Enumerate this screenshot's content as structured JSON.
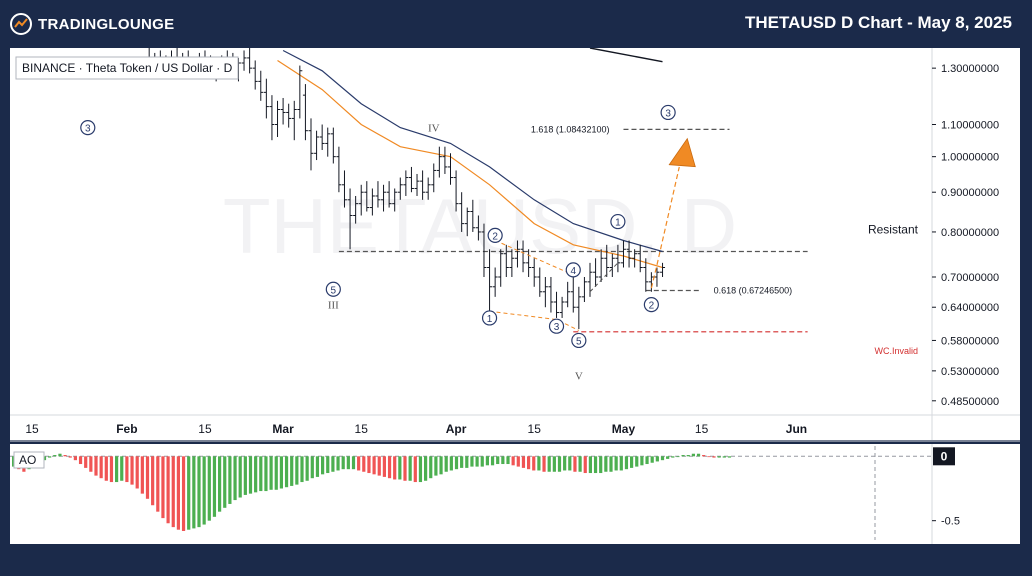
{
  "header": {
    "logo_text": "TRADINGLOUNGE",
    "title": "THETAUSD D Chart - May 8, 2025"
  },
  "chart_data": {
    "type": "candlestick",
    "symbol_label": "BINANCE · Theta Token / US Dollar · D",
    "watermark": "THETAUSD, D",
    "price_scale": "log",
    "ylim": [
      0.465,
      1.38
    ],
    "y_ticks": [
      {
        "value": 1.3,
        "label": "1.30000000"
      },
      {
        "value": 1.1,
        "label": "1.10000000"
      },
      {
        "value": 1.0,
        "label": "1.00000000"
      },
      {
        "value": 0.9,
        "label": "0.90000000"
      },
      {
        "value": 0.8,
        "label": "0.80000000"
      },
      {
        "value": 0.7,
        "label": "0.70000000"
      },
      {
        "value": 0.64,
        "label": "0.64000000"
      },
      {
        "value": 0.58,
        "label": "0.58000000"
      },
      {
        "value": 0.53,
        "label": "0.53000000"
      },
      {
        "value": 0.485,
        "label": "0.48500000"
      }
    ],
    "x_labels": [
      {
        "date": "2025-01-15",
        "label": "15"
      },
      {
        "date": "2025-02-01",
        "label": "Feb"
      },
      {
        "date": "2025-02-15",
        "label": "15"
      },
      {
        "date": "2025-03-01",
        "label": "Mar"
      },
      {
        "date": "2025-03-15",
        "label": "15"
      },
      {
        "date": "2025-04-01",
        "label": "Apr"
      },
      {
        "date": "2025-04-15",
        "label": "15"
      },
      {
        "date": "2025-05-01",
        "label": "May"
      },
      {
        "date": "2025-05-15",
        "label": "15"
      },
      {
        "date": "2025-06-01",
        "label": "Jun"
      }
    ],
    "candles": [
      {
        "date": "2025-02-05",
        "o": 1.32,
        "h": 1.38,
        "l": 1.28,
        "c": 1.3
      },
      {
        "date": "2025-02-06",
        "o": 1.3,
        "h": 1.36,
        "l": 1.27,
        "c": 1.33
      },
      {
        "date": "2025-02-07",
        "o": 1.33,
        "h": 1.37,
        "l": 1.29,
        "c": 1.31
      },
      {
        "date": "2025-02-08",
        "o": 1.31,
        "h": 1.35,
        "l": 1.28,
        "c": 1.32
      },
      {
        "date": "2025-02-09",
        "o": 1.32,
        "h": 1.37,
        "l": 1.3,
        "c": 1.34
      },
      {
        "date": "2025-02-10",
        "o": 1.34,
        "h": 1.38,
        "l": 1.3,
        "c": 1.31
      },
      {
        "date": "2025-02-11",
        "o": 1.31,
        "h": 1.36,
        "l": 1.28,
        "c": 1.33
      },
      {
        "date": "2025-02-12",
        "o": 1.33,
        "h": 1.37,
        "l": 1.29,
        "c": 1.3
      },
      {
        "date": "2025-02-13",
        "o": 1.3,
        "h": 1.34,
        "l": 1.27,
        "c": 1.32
      },
      {
        "date": "2025-02-14",
        "o": 1.32,
        "h": 1.36,
        "l": 1.29,
        "c": 1.33
      },
      {
        "date": "2025-02-15",
        "o": 1.33,
        "h": 1.37,
        "l": 1.29,
        "c": 1.31
      },
      {
        "date": "2025-02-16",
        "o": 1.31,
        "h": 1.35,
        "l": 1.27,
        "c": 1.29
      },
      {
        "date": "2025-02-17",
        "o": 1.29,
        "h": 1.33,
        "l": 1.25,
        "c": 1.31
      },
      {
        "date": "2025-02-18",
        "o": 1.31,
        "h": 1.35,
        "l": 1.28,
        "c": 1.33
      },
      {
        "date": "2025-02-19",
        "o": 1.33,
        "h": 1.37,
        "l": 1.3,
        "c": 1.32
      },
      {
        "date": "2025-02-20",
        "o": 1.32,
        "h": 1.36,
        "l": 1.27,
        "c": 1.28
      },
      {
        "date": "2025-02-21",
        "o": 1.28,
        "h": 1.34,
        "l": 1.25,
        "c": 1.32
      },
      {
        "date": "2025-02-22",
        "o": 1.32,
        "h": 1.37,
        "l": 1.29,
        "c": 1.34
      },
      {
        "date": "2025-02-23",
        "o": 1.34,
        "h": 1.38,
        "l": 1.28,
        "c": 1.3
      },
      {
        "date": "2025-02-24",
        "o": 1.3,
        "h": 1.33,
        "l": 1.22,
        "c": 1.25
      },
      {
        "date": "2025-02-25",
        "o": 1.25,
        "h": 1.29,
        "l": 1.18,
        "c": 1.21
      },
      {
        "date": "2025-02-26",
        "o": 1.21,
        "h": 1.26,
        "l": 1.12,
        "c": 1.16
      },
      {
        "date": "2025-02-27",
        "o": 1.16,
        "h": 1.2,
        "l": 1.05,
        "c": 1.1
      },
      {
        "date": "2025-02-28",
        "o": 1.1,
        "h": 1.18,
        "l": 1.06,
        "c": 1.15
      },
      {
        "date": "2025-03-01",
        "o": 1.15,
        "h": 1.19,
        "l": 1.1,
        "c": 1.14
      },
      {
        "date": "2025-03-02",
        "o": 1.14,
        "h": 1.17,
        "l": 1.09,
        "c": 1.12
      },
      {
        "date": "2025-03-03",
        "o": 1.12,
        "h": 1.18,
        "l": 1.05,
        "c": 1.15
      },
      {
        "date": "2025-03-04",
        "o": 1.15,
        "h": 1.31,
        "l": 1.12,
        "c": 1.29
      },
      {
        "date": "2025-03-05",
        "o": 1.2,
        "h": 1.24,
        "l": 1.05,
        "c": 1.08
      },
      {
        "date": "2025-03-06",
        "o": 1.08,
        "h": 1.12,
        "l": 0.96,
        "c": 1.01
      },
      {
        "date": "2025-03-07",
        "o": 1.01,
        "h": 1.08,
        "l": 0.99,
        "c": 1.06
      },
      {
        "date": "2025-03-08",
        "o": 1.06,
        "h": 1.1,
        "l": 1.02,
        "c": 1.04
      },
      {
        "date": "2025-03-09",
        "o": 1.04,
        "h": 1.09,
        "l": 1.0,
        "c": 1.07
      },
      {
        "date": "2025-03-10",
        "o": 1.07,
        "h": 1.09,
        "l": 0.98,
        "c": 1.0
      },
      {
        "date": "2025-03-11",
        "o": 1.0,
        "h": 1.03,
        "l": 0.9,
        "c": 0.92
      },
      {
        "date": "2025-03-12",
        "o": 0.92,
        "h": 0.96,
        "l": 0.86,
        "c": 0.88
      },
      {
        "date": "2025-03-13",
        "o": 0.88,
        "h": 0.91,
        "l": 0.76,
        "c": 0.84
      },
      {
        "date": "2025-03-14",
        "o": 0.84,
        "h": 0.89,
        "l": 0.82,
        "c": 0.87
      },
      {
        "date": "2025-03-15",
        "o": 0.87,
        "h": 0.92,
        "l": 0.84,
        "c": 0.9
      },
      {
        "date": "2025-03-16",
        "o": 0.9,
        "h": 0.93,
        "l": 0.85,
        "c": 0.86
      },
      {
        "date": "2025-03-17",
        "o": 0.86,
        "h": 0.91,
        "l": 0.84,
        "c": 0.89
      },
      {
        "date": "2025-03-18",
        "o": 0.89,
        "h": 0.93,
        "l": 0.86,
        "c": 0.88
      },
      {
        "date": "2025-03-19",
        "o": 0.88,
        "h": 0.92,
        "l": 0.85,
        "c": 0.9
      },
      {
        "date": "2025-03-20",
        "o": 0.9,
        "h": 0.93,
        "l": 0.86,
        "c": 0.87
      },
      {
        "date": "2025-03-21",
        "o": 0.87,
        "h": 0.91,
        "l": 0.85,
        "c": 0.9
      },
      {
        "date": "2025-03-22",
        "o": 0.9,
        "h": 0.94,
        "l": 0.88,
        "c": 0.92
      },
      {
        "date": "2025-03-23",
        "o": 0.92,
        "h": 0.96,
        "l": 0.89,
        "c": 0.94
      },
      {
        "date": "2025-03-24",
        "o": 0.94,
        "h": 0.97,
        "l": 0.9,
        "c": 0.91
      },
      {
        "date": "2025-03-25",
        "o": 0.91,
        "h": 0.95,
        "l": 0.89,
        "c": 0.93
      },
      {
        "date": "2025-03-26",
        "o": 0.93,
        "h": 0.96,
        "l": 0.88,
        "c": 0.9
      },
      {
        "date": "2025-03-27",
        "o": 0.9,
        "h": 0.94,
        "l": 0.88,
        "c": 0.92
      },
      {
        "date": "2025-03-28",
        "o": 0.92,
        "h": 0.98,
        "l": 0.9,
        "c": 0.96
      },
      {
        "date": "2025-03-29",
        "o": 0.96,
        "h": 1.03,
        "l": 0.94,
        "c": 1.0
      },
      {
        "date": "2025-03-30",
        "o": 1.0,
        "h": 1.03,
        "l": 0.95,
        "c": 0.97
      },
      {
        "date": "2025-03-31",
        "o": 0.97,
        "h": 1.01,
        "l": 0.92,
        "c": 0.94
      },
      {
        "date": "2025-04-01",
        "o": 0.94,
        "h": 0.96,
        "l": 0.85,
        "c": 0.87
      },
      {
        "date": "2025-04-02",
        "o": 0.87,
        "h": 0.9,
        "l": 0.8,
        "c": 0.82
      },
      {
        "date": "2025-04-03",
        "o": 0.82,
        "h": 0.86,
        "l": 0.79,
        "c": 0.85
      },
      {
        "date": "2025-04-04",
        "o": 0.85,
        "h": 0.88,
        "l": 0.8,
        "c": 0.81
      },
      {
        "date": "2025-04-05",
        "o": 0.81,
        "h": 0.84,
        "l": 0.78,
        "c": 0.8
      },
      {
        "date": "2025-04-06",
        "o": 0.8,
        "h": 0.82,
        "l": 0.7,
        "c": 0.72
      },
      {
        "date": "2025-04-07",
        "o": 0.72,
        "h": 0.76,
        "l": 0.63,
        "c": 0.68
      },
      {
        "date": "2025-04-08",
        "o": 0.68,
        "h": 0.72,
        "l": 0.66,
        "c": 0.7
      },
      {
        "date": "2025-04-09",
        "o": 0.7,
        "h": 0.76,
        "l": 0.68,
        "c": 0.75
      },
      {
        "date": "2025-04-10",
        "o": 0.75,
        "h": 0.77,
        "l": 0.7,
        "c": 0.72
      },
      {
        "date": "2025-04-11",
        "o": 0.72,
        "h": 0.76,
        "l": 0.7,
        "c": 0.74
      },
      {
        "date": "2025-04-12",
        "o": 0.74,
        "h": 0.78,
        "l": 0.72,
        "c": 0.76
      },
      {
        "date": "2025-04-13",
        "o": 0.76,
        "h": 0.78,
        "l": 0.71,
        "c": 0.73
      },
      {
        "date": "2025-04-14",
        "o": 0.73,
        "h": 0.76,
        "l": 0.7,
        "c": 0.72
      },
      {
        "date": "2025-04-15",
        "o": 0.72,
        "h": 0.74,
        "l": 0.68,
        "c": 0.7
      },
      {
        "date": "2025-04-16",
        "o": 0.7,
        "h": 0.72,
        "l": 0.66,
        "c": 0.67
      },
      {
        "date": "2025-04-17",
        "o": 0.67,
        "h": 0.7,
        "l": 0.64,
        "c": 0.68
      },
      {
        "date": "2025-04-18",
        "o": 0.68,
        "h": 0.7,
        "l": 0.63,
        "c": 0.65
      },
      {
        "date": "2025-04-19",
        "o": 0.65,
        "h": 0.67,
        "l": 0.62,
        "c": 0.63
      },
      {
        "date": "2025-04-20",
        "o": 0.63,
        "h": 0.66,
        "l": 0.62,
        "c": 0.65
      },
      {
        "date": "2025-04-21",
        "o": 0.65,
        "h": 0.69,
        "l": 0.64,
        "c": 0.67
      },
      {
        "date": "2025-04-22",
        "o": 0.67,
        "h": 0.7,
        "l": 0.63,
        "c": 0.64
      },
      {
        "date": "2025-04-23",
        "o": 0.64,
        "h": 0.68,
        "l": 0.6,
        "c": 0.66
      },
      {
        "date": "2025-04-24",
        "o": 0.66,
        "h": 0.7,
        "l": 0.65,
        "c": 0.69
      },
      {
        "date": "2025-04-25",
        "o": 0.69,
        "h": 0.73,
        "l": 0.66,
        "c": 0.71
      },
      {
        "date": "2025-04-26",
        "o": 0.71,
        "h": 0.74,
        "l": 0.68,
        "c": 0.7
      },
      {
        "date": "2025-04-27",
        "o": 0.7,
        "h": 0.76,
        "l": 0.69,
        "c": 0.74
      },
      {
        "date": "2025-04-28",
        "o": 0.74,
        "h": 0.77,
        "l": 0.7,
        "c": 0.72
      },
      {
        "date": "2025-04-29",
        "o": 0.72,
        "h": 0.75,
        "l": 0.7,
        "c": 0.74
      },
      {
        "date": "2025-04-30",
        "o": 0.74,
        "h": 0.77,
        "l": 0.71,
        "c": 0.73
      },
      {
        "date": "2025-05-01",
        "o": 0.73,
        "h": 0.78,
        "l": 0.72,
        "c": 0.76
      },
      {
        "date": "2025-05-02",
        "o": 0.76,
        "h": 0.78,
        "l": 0.72,
        "c": 0.74
      },
      {
        "date": "2025-05-03",
        "o": 0.74,
        "h": 0.76,
        "l": 0.72,
        "c": 0.75
      },
      {
        "date": "2025-05-04",
        "o": 0.75,
        "h": 0.77,
        "l": 0.71,
        "c": 0.72
      },
      {
        "date": "2025-05-05",
        "o": 0.72,
        "h": 0.74,
        "l": 0.67,
        "c": 0.69
      },
      {
        "date": "2025-05-06",
        "o": 0.69,
        "h": 0.71,
        "l": 0.67,
        "c": 0.7
      },
      {
        "date": "2025-05-07",
        "o": 0.7,
        "h": 0.72,
        "l": 0.68,
        "c": 0.71
      },
      {
        "date": "2025-05-08",
        "o": 0.71,
        "h": 0.73,
        "l": 0.7,
        "c": 0.72
      }
    ],
    "moving_averages": [
      {
        "color": "#f08a24",
        "points": [
          [
            "2025-02-28",
            1.33
          ],
          [
            "2025-03-08",
            1.22
          ],
          [
            "2025-03-15",
            1.1
          ],
          [
            "2025-03-22",
            1.03
          ],
          [
            "2025-03-31",
            1.0
          ],
          [
            "2025-04-07",
            0.92
          ],
          [
            "2025-04-15",
            0.82
          ],
          [
            "2025-04-22",
            0.77
          ],
          [
            "2025-05-01",
            0.745
          ],
          [
            "2025-05-08",
            0.72
          ]
        ]
      },
      {
        "color": "#2a3b6b",
        "points": [
          [
            "2025-03-01",
            1.37
          ],
          [
            "2025-03-08",
            1.29
          ],
          [
            "2025-03-15",
            1.17
          ],
          [
            "2025-03-22",
            1.09
          ],
          [
            "2025-03-31",
            1.04
          ],
          [
            "2025-04-07",
            0.97
          ],
          [
            "2025-04-15",
            0.88
          ],
          [
            "2025-04-22",
            0.82
          ],
          [
            "2025-05-01",
            0.78
          ],
          [
            "2025-05-08",
            0.755
          ]
        ]
      },
      {
        "color": "#131722",
        "points": [
          [
            "2025-04-25",
            1.38
          ],
          [
            "2025-05-08",
            1.325
          ]
        ]
      }
    ],
    "levels": [
      {
        "price": 0.755,
        "from": "2025-03-11",
        "to": "2025-06-03",
        "color": "#555555",
        "label": "Resistant"
      },
      {
        "price": 1.0843,
        "from": "2025-05-01",
        "to": "2025-05-20",
        "color": "#555555",
        "label": "1.618 (1.08432100)"
      },
      {
        "price": 0.6725,
        "from": "2025-05-05",
        "to": "2025-05-15",
        "color": "#555555",
        "label": "0.618 (0.67246500)"
      },
      {
        "price": 0.595,
        "from": "2025-04-22",
        "to": "2025-06-03",
        "color": "#d32f2f",
        "label": "WC.Invalid"
      }
    ],
    "wave_labels": [
      {
        "text": "3",
        "circled": true,
        "date": "2025-01-25",
        "price": 1.09
      },
      {
        "text": "IV",
        "circled": false,
        "date": "2025-03-28",
        "price": 1.09
      },
      {
        "text": "5",
        "circled": true,
        "date": "2025-03-10",
        "price": 0.675
      },
      {
        "text": "III",
        "circled": false,
        "date": "2025-03-10",
        "price": 0.645
      },
      {
        "text": "1",
        "circled": true,
        "date": "2025-04-07",
        "price": 0.62
      },
      {
        "text": "2",
        "circled": true,
        "date": "2025-04-08",
        "price": 0.792
      },
      {
        "text": "3",
        "circled": true,
        "date": "2025-04-19",
        "price": 0.605
      },
      {
        "text": "4",
        "circled": true,
        "date": "2025-04-22",
        "price": 0.715
      },
      {
        "text": "5",
        "circled": true,
        "date": "2025-04-23",
        "price": 0.58
      },
      {
        "text": "V",
        "circled": false,
        "date": "2025-04-23",
        "price": 0.523
      },
      {
        "text": "1",
        "circled": true,
        "date": "2025-04-30",
        "price": 0.825
      },
      {
        "text": "2",
        "circled": true,
        "date": "2025-05-06",
        "price": 0.645
      },
      {
        "text": "3",
        "circled": true,
        "date": "2025-05-09",
        "price": 1.14
      }
    ],
    "ao": {
      "label": "AO",
      "ylim": [
        -0.65,
        0.08
      ],
      "ticks": [
        {
          "value": 0,
          "label": "0"
        },
        {
          "value": -0.5,
          "label": "-0.5"
        }
      ],
      "values": [
        -0.08,
        -0.1,
        -0.12,
        -0.1,
        -0.08,
        -0.06,
        -0.03,
        -0.01,
        0.01,
        0.02,
        0.01,
        -0.01,
        -0.03,
        -0.06,
        -0.09,
        -0.12,
        -0.15,
        -0.17,
        -0.19,
        -0.2,
        -0.2,
        -0.19,
        -0.2,
        -0.22,
        -0.25,
        -0.29,
        -0.33,
        -0.38,
        -0.43,
        -0.48,
        -0.52,
        -0.55,
        -0.57,
        -0.58,
        -0.57,
        -0.56,
        -0.55,
        -0.53,
        -0.5,
        -0.47,
        -0.43,
        -0.4,
        -0.37,
        -0.34,
        -0.32,
        -0.3,
        -0.29,
        -0.28,
        -0.27,
        -0.27,
        -0.26,
        -0.26,
        -0.25,
        -0.24,
        -0.23,
        -0.22,
        -0.2,
        -0.19,
        -0.17,
        -0.16,
        -0.14,
        -0.13,
        -0.12,
        -0.11,
        -0.1,
        -0.1,
        -0.1,
        -0.11,
        -0.12,
        -0.13,
        -0.14,
        -0.15,
        -0.16,
        -0.17,
        -0.18,
        -0.18,
        -0.19,
        -0.19,
        -0.2,
        -0.2,
        -0.19,
        -0.17,
        -0.15,
        -0.14,
        -0.12,
        -0.11,
        -0.1,
        -0.09,
        -0.09,
        -0.08,
        -0.08,
        -0.08,
        -0.07,
        -0.07,
        -0.06,
        -0.06,
        -0.06,
        -0.07,
        -0.08,
        -0.09,
        -0.1,
        -0.11,
        -0.11,
        -0.12,
        -0.12,
        -0.12,
        -0.12,
        -0.11,
        -0.11,
        -0.12,
        -0.12,
        -0.13,
        -0.13,
        -0.13,
        -0.13,
        -0.12,
        -0.12,
        -0.11,
        -0.11,
        -0.1,
        -0.09,
        -0.08,
        -0.07,
        -0.06,
        -0.05,
        -0.04,
        -0.03,
        -0.02,
        -0.01,
        0.0,
        0.01,
        0.01,
        0.02,
        0.02,
        0.01,
        0.0,
        -0.01,
        -0.01,
        -0.01,
        -0.01
      ]
    }
  }
}
